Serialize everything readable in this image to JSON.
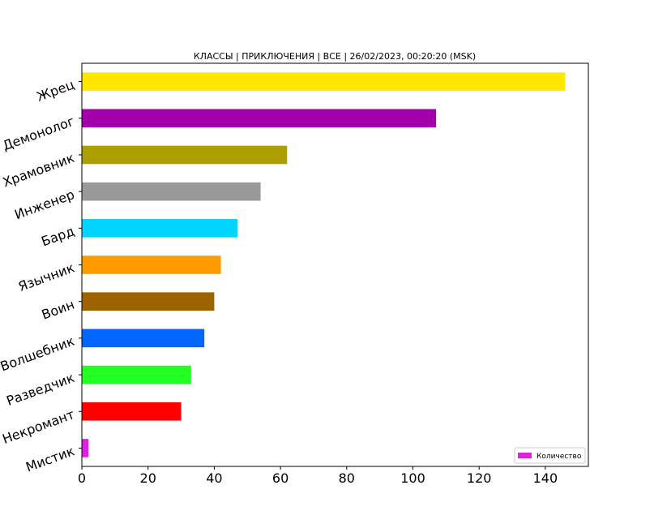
{
  "chart_data": {
    "type": "bar",
    "orientation": "horizontal",
    "title": "КЛАССЫ | ПРИКЛЮЧЕНИЯ | ВСЕ | 26/02/2023, 00:20:20 (MSK)",
    "xlabel": "",
    "ylabel": "",
    "xlim": [
      0,
      153
    ],
    "xticks": [
      0,
      20,
      40,
      60,
      80,
      100,
      120,
      140
    ],
    "grid": false,
    "legend": {
      "position": "bottom-right",
      "entries": [
        "Количество"
      ],
      "color": "#e41fe4"
    },
    "categories": [
      "Жрец",
      "Демонолог",
      "Храмовник",
      "Инженер",
      "Бард",
      "Язычник",
      "Воин",
      "Волшебник",
      "Разведчик",
      "Некромант",
      "Мистик"
    ],
    "series": [
      {
        "name": "Количество",
        "values": [
          146,
          107,
          62,
          54,
          47,
          42,
          40,
          37,
          33,
          30,
          2
        ],
        "colors": [
          "#ffe600",
          "#a100aa",
          "#ad9f00",
          "#999999",
          "#00d4ff",
          "#ff9b00",
          "#9e6200",
          "#0066ff",
          "#22ff22",
          "#ff0000",
          "#e41fe4"
        ]
      }
    ]
  }
}
